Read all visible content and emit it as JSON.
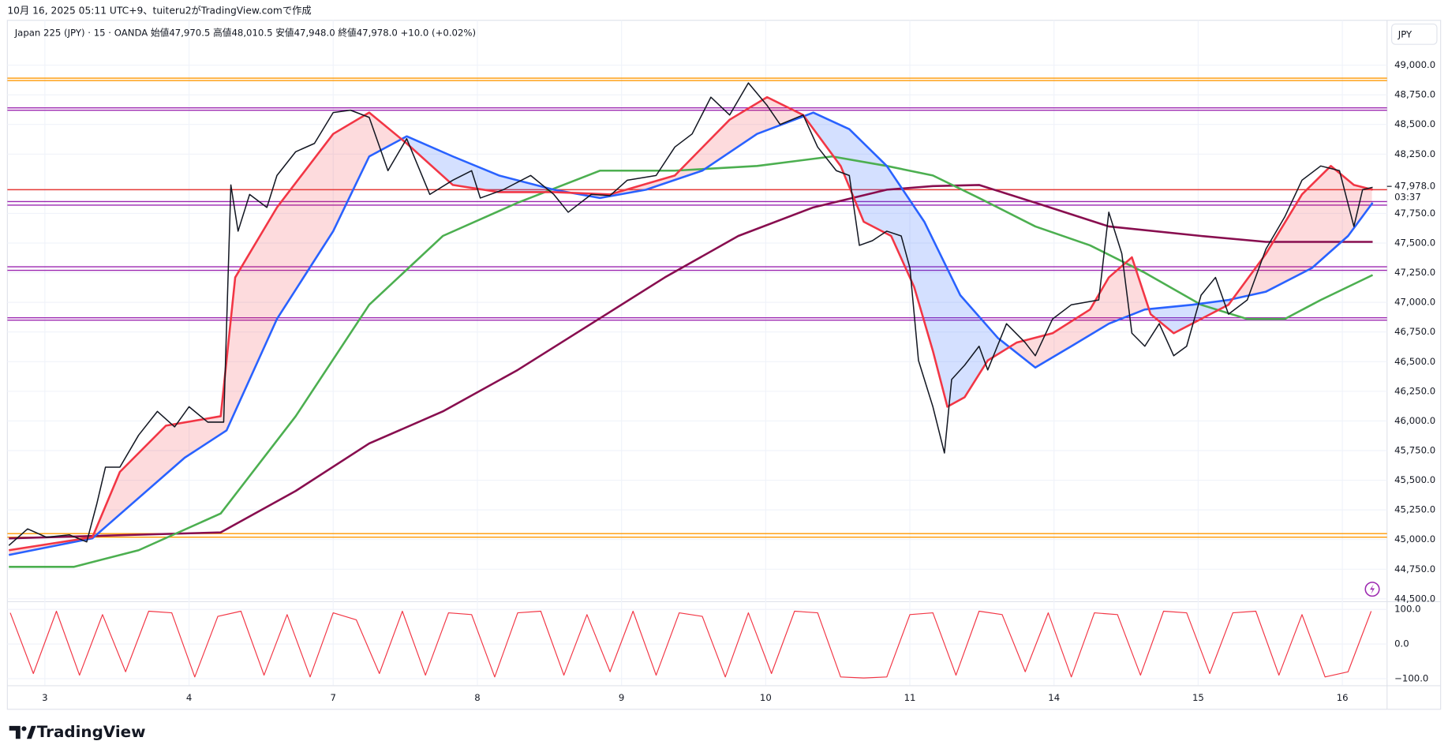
{
  "header": "10月 16, 2025 05:11 UTC+9、tuiteru2がTradingView.comで作成",
  "brand": "TradingView",
  "chart_data": [
    {
      "type": "line",
      "title": "Japan 225 (JPY) · 15 · OANDA  始値47,970.5  高値48,010.5  安値47,948.0  終値47,978.0  +10.0 (+0.02%)",
      "currency": "JPY",
      "grid": true,
      "xlim": [
        -0.26,
        9.31
      ],
      "xticks": [
        {
          "value": 0,
          "label": "3"
        },
        {
          "value": 1,
          "label": "4"
        },
        {
          "value": 2,
          "label": "7"
        },
        {
          "value": 3,
          "label": "8"
        },
        {
          "value": 4,
          "label": "9"
        },
        {
          "value": 5,
          "label": "10"
        },
        {
          "value": 6,
          "label": "11"
        },
        {
          "value": 7,
          "label": "14"
        },
        {
          "value": 8,
          "label": "15"
        },
        {
          "value": 9,
          "label": "16"
        }
      ],
      "ylim": [
        44480,
        49160
      ],
      "yticks": [
        {
          "value": 44500,
          "label": "44,500.0"
        },
        {
          "value": 44750,
          "label": "44,750.0"
        },
        {
          "value": 45000,
          "label": "45,000.0"
        },
        {
          "value": 45250,
          "label": "45,250.0"
        },
        {
          "value": 45500,
          "label": "45,500.0"
        },
        {
          "value": 45750,
          "label": "45,750.0"
        },
        {
          "value": 46000,
          "label": "46,000.0"
        },
        {
          "value": 46250,
          "label": "46,250.0"
        },
        {
          "value": 46500,
          "label": "46,500.0"
        },
        {
          "value": 46750,
          "label": "46,750.0"
        },
        {
          "value": 47000,
          "label": "47,000.0"
        },
        {
          "value": 47250,
          "label": "47,250.0"
        },
        {
          "value": 47500,
          "label": "47,500.0"
        },
        {
          "value": 47750,
          "label": "47,750.0"
        },
        {
          "value": 48250,
          "label": "48,250.0"
        },
        {
          "value": 48500,
          "label": "48,500.0"
        },
        {
          "value": 48750,
          "label": "48,750.0"
        },
        {
          "value": 49000,
          "label": "49,000.0"
        }
      ],
      "last_price": {
        "value": 47978,
        "label": "47,978.0",
        "countdown": "03:37"
      },
      "levels": [
        {
          "value": 48890,
          "color": "#ff9800"
        },
        {
          "value": 48870,
          "color": "#ff9800"
        },
        {
          "value": 48640,
          "color": "#9c27b0"
        },
        {
          "value": 48620,
          "color": "#9c27b0"
        },
        {
          "value": 47950,
          "color": "#e53935"
        },
        {
          "value": 47850,
          "color": "#9c27b0"
        },
        {
          "value": 47820,
          "color": "#9c27b0"
        },
        {
          "value": 47300,
          "color": "#9c27b0"
        },
        {
          "value": 47270,
          "color": "#9c27b0"
        },
        {
          "value": 46870,
          "color": "#9c27b0"
        },
        {
          "value": 46850,
          "color": "#9c27b0"
        },
        {
          "value": 45050,
          "color": "#ff9800"
        },
        {
          "value": 45020,
          "color": "#ff9800"
        }
      ],
      "fill_between": [
        1,
        2
      ],
      "series": [
        {
          "color": "#131722",
          "x": [
            -0.25,
            -0.12,
            0.01,
            0.17,
            0.29,
            0.36,
            0.42,
            0.52,
            0.65,
            0.78,
            0.9,
            1.0,
            1.13,
            1.24,
            1.29,
            1.34,
            1.42,
            1.54,
            1.61,
            1.74,
            1.87,
            2.0,
            2.12,
            2.25,
            2.38,
            2.51,
            2.67,
            2.83,
            2.96,
            3.02,
            3.18,
            3.37,
            3.53,
            3.63,
            3.79,
            3.92,
            4.04,
            4.24,
            4.37,
            4.49,
            4.62,
            4.75,
            4.88,
            5.01,
            5.1,
            5.26,
            5.36,
            5.49,
            5.58,
            5.65,
            5.74,
            5.84,
            5.94,
            6.0,
            6.06,
            6.16,
            6.24,
            6.29,
            6.38,
            6.48,
            6.54,
            6.67,
            6.8,
            6.87,
            6.99,
            7.12,
            7.31,
            7.38,
            7.47,
            7.54,
            7.63,
            7.73,
            7.83,
            7.92,
            8.02,
            8.12,
            8.21,
            8.34,
            8.47,
            8.6,
            8.72,
            8.85,
            8.98,
            9.08,
            9.14,
            9.21
          ],
          "values": [
            44950,
            45090,
            45020,
            45040,
            44980,
            45300,
            45610,
            45610,
            45880,
            46080,
            45950,
            46120,
            45990,
            45990,
            47990,
            47600,
            47910,
            47800,
            48070,
            48270,
            48340,
            48600,
            48620,
            48560,
            48110,
            48380,
            47910,
            48030,
            48110,
            47880,
            47950,
            48070,
            47910,
            47760,
            47910,
            47900,
            48030,
            48070,
            48310,
            48420,
            48730,
            48580,
            48850,
            48660,
            48500,
            48580,
            48310,
            48110,
            48070,
            47480,
            47520,
            47600,
            47560,
            47290,
            46510,
            46120,
            45730,
            46350,
            46470,
            46630,
            46430,
            46820,
            46660,
            46550,
            46860,
            46980,
            47020,
            47760,
            47410,
            46740,
            46630,
            46820,
            46550,
            46630,
            47060,
            47210,
            46900,
            47020,
            47450,
            47720,
            48030,
            48150,
            48110,
            47640,
            47950,
            47970
          ]
        },
        {
          "color": "#f23645",
          "x": [
            -0.25,
            0.33,
            0.52,
            0.84,
            1.22,
            1.32,
            1.61,
            2.0,
            2.25,
            2.51,
            2.83,
            3.15,
            3.53,
            3.92,
            4.37,
            4.75,
            5.01,
            5.26,
            5.52,
            5.68,
            5.87,
            6.03,
            6.16,
            6.26,
            6.38,
            6.54,
            6.74,
            6.99,
            7.25,
            7.38,
            7.54,
            7.67,
            7.83,
            8.02,
            8.21,
            8.47,
            8.72,
            8.92,
            9.08,
            9.21
          ],
          "values": [
            44910,
            45020,
            45570,
            45960,
            46040,
            47210,
            47800,
            48420,
            48600,
            48340,
            47990,
            47930,
            47930,
            47910,
            48070,
            48540,
            48730,
            48580,
            48150,
            47680,
            47560,
            47130,
            46590,
            46120,
            46200,
            46510,
            46660,
            46740,
            46940,
            47210,
            47380,
            46900,
            46740,
            46860,
            46980,
            47410,
            47910,
            48150,
            47990,
            47950
          ]
        },
        {
          "color": "#2962ff",
          "x": [
            -0.25,
            0.33,
            0.97,
            1.26,
            1.61,
            2.0,
            2.25,
            2.51,
            2.83,
            3.15,
            3.53,
            3.85,
            4.17,
            4.56,
            4.94,
            5.33,
            5.58,
            5.84,
            6.1,
            6.35,
            6.61,
            6.87,
            7.12,
            7.38,
            7.63,
            7.96,
            8.21,
            8.47,
            8.79,
            9.04,
            9.21
          ],
          "values": [
            44870,
            45010,
            45690,
            45920,
            46860,
            47600,
            48230,
            48400,
            48230,
            48070,
            47950,
            47880,
            47950,
            48110,
            48420,
            48600,
            48460,
            48150,
            47680,
            47060,
            46700,
            46450,
            46630,
            46820,
            46940,
            46980,
            47020,
            47090,
            47290,
            47560,
            47840
          ]
        },
        {
          "color": "#4caf50",
          "x": [
            -0.25,
            0.2,
            0.65,
            1.22,
            1.74,
            2.25,
            2.76,
            3.28,
            3.85,
            4.37,
            4.94,
            5.46,
            5.84,
            6.16,
            6.48,
            6.87,
            7.25,
            7.63,
            8.02,
            8.34,
            8.6,
            8.85,
            9.21
          ],
          "values": [
            44770,
            44770,
            44910,
            45220,
            46040,
            46980,
            47560,
            47840,
            48110,
            48110,
            48150,
            48230,
            48150,
            48070,
            47880,
            47640,
            47480,
            47250,
            46980,
            46860,
            46860,
            47020,
            47230
          ]
        },
        {
          "color": "#880e4f",
          "x": [
            -0.25,
            1.22,
            1.74,
            2.25,
            2.76,
            3.28,
            3.79,
            4.3,
            4.81,
            5.33,
            5.84,
            6.16,
            6.48,
            6.87,
            7.38,
            8.02,
            8.47,
            8.79,
            9.21
          ],
          "values": [
            45010,
            45060,
            45410,
            45810,
            46080,
            46430,
            46820,
            47210,
            47560,
            47800,
            47950,
            47980,
            47990,
            47840,
            47640,
            47560,
            47510,
            47510,
            47510
          ]
        }
      ]
    },
    {
      "type": "line",
      "ylim": [
        -119,
        121
      ],
      "yticks": [
        {
          "value": 100,
          "label": "100.0"
        },
        {
          "value": 0,
          "label": "0.0"
        },
        {
          "value": -100,
          "label": "−100.0"
        }
      ],
      "series": [
        {
          "color": "#f23645",
          "x": [
            -0.24,
            -0.08,
            0.08,
            0.24,
            0.4,
            0.56,
            0.72,
            0.88,
            1.04,
            1.2,
            1.36,
            1.52,
            1.68,
            1.84,
            2,
            2.16,
            2.32,
            2.48,
            2.64,
            2.8,
            2.96,
            3.12,
            3.28,
            3.44,
            3.6,
            3.76,
            3.92,
            4.08,
            4.24,
            4.4,
            4.56,
            4.72,
            4.88,
            5.04,
            5.2,
            5.36,
            5.52,
            5.68,
            5.84,
            6,
            6.16,
            6.32,
            6.48,
            6.64,
            6.8,
            6.96,
            7.12,
            7.28,
            7.44,
            7.6,
            7.76,
            7.92,
            8.08,
            8.24,
            8.4,
            8.56,
            8.72,
            8.88,
            9.04,
            9.2
          ],
          "values": [
            90,
            -85,
            95,
            -90,
            85,
            -80,
            95,
            90,
            -95,
            80,
            95,
            -90,
            85,
            -95,
            90,
            70,
            -85,
            95,
            -90,
            90,
            85,
            -95,
            90,
            95,
            -90,
            85,
            -80,
            95,
            -90,
            90,
            80,
            -95,
            90,
            -85,
            95,
            90,
            -95,
            -98,
            -95,
            85,
            90,
            -90,
            95,
            85,
            -80,
            90,
            -95,
            90,
            85,
            -90,
            95,
            90,
            -85,
            90,
            95,
            -90,
            85,
            -95,
            -80,
            95
          ]
        }
      ]
    }
  ]
}
